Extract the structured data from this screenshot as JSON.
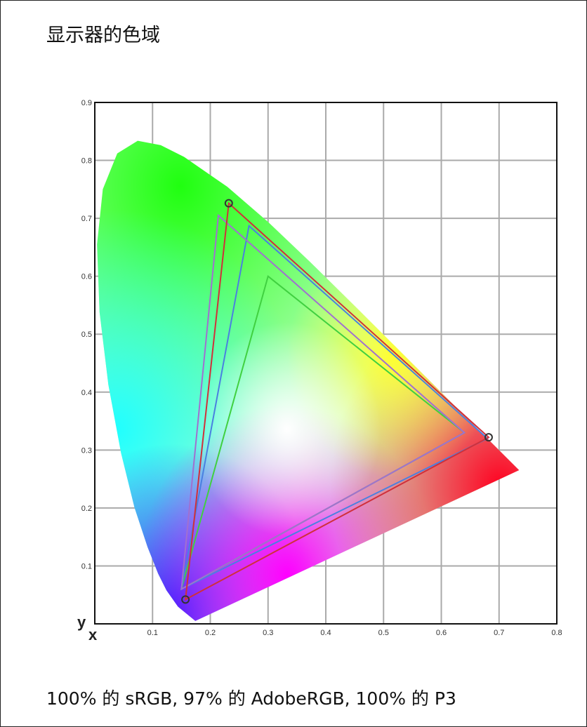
{
  "title": "显示器的色域",
  "caption": "100% 的 sRGB, 97% 的 AdobeRGB, 100% 的 P3",
  "chart_data": {
    "type": "line",
    "subtype": "CIE 1931 chromaticity diagram",
    "xlabel": "x",
    "ylabel": "y",
    "xlim": [
      0,
      0.8
    ],
    "ylim": [
      0,
      0.9
    ],
    "xticks": [
      "0.1",
      "0.2",
      "0.3",
      "0.4",
      "0.5",
      "0.6",
      "0.7",
      "0.8"
    ],
    "yticks": [
      "0.1",
      "0.2",
      "0.3",
      "0.4",
      "0.5",
      "0.6",
      "0.7",
      "0.8",
      "0.9"
    ],
    "grid": true,
    "spectral_locus": [
      [
        0.1741,
        0.005
      ],
      [
        0.144,
        0.0297
      ],
      [
        0.1241,
        0.0578
      ],
      [
        0.1096,
        0.0868
      ],
      [
        0.0913,
        0.1327
      ],
      [
        0.0687,
        0.2007
      ],
      [
        0.0454,
        0.295
      ],
      [
        0.0235,
        0.4127
      ],
      [
        0.0082,
        0.5384
      ],
      [
        0.0039,
        0.6548
      ],
      [
        0.0139,
        0.7502
      ],
      [
        0.0389,
        0.812
      ],
      [
        0.0743,
        0.8338
      ],
      [
        0.1142,
        0.8262
      ],
      [
        0.1547,
        0.8059
      ],
      [
        0.2296,
        0.7543
      ],
      [
        0.3016,
        0.6923
      ],
      [
        0.3731,
        0.6245
      ],
      [
        0.4441,
        0.5547
      ],
      [
        0.5125,
        0.4866
      ],
      [
        0.5752,
        0.4242
      ],
      [
        0.627,
        0.3725
      ],
      [
        0.6915,
        0.3083
      ],
      [
        0.7347,
        0.2653
      ]
    ],
    "series": [
      {
        "color": "#d0303a",
        "markers": true,
        "points": [
          [
            0.232,
            0.726
          ],
          [
            0.682,
            0.322
          ],
          [
            0.157,
            0.042
          ]
        ]
      },
      {
        "color": "#a070d0",
        "markers": false,
        "points": [
          [
            0.214,
            0.705
          ],
          [
            0.64,
            0.33
          ],
          [
            0.15,
            0.06
          ]
        ]
      },
      {
        "color": "#4a80e0",
        "markers": false,
        "points": [
          [
            0.267,
            0.687
          ],
          [
            0.68,
            0.32
          ],
          [
            0.15,
            0.06
          ]
        ]
      },
      {
        "color": "#40d040",
        "markers": false,
        "points": [
          [
            0.3,
            0.6
          ],
          [
            0.64,
            0.33
          ],
          [
            0.15,
            0.06
          ]
        ]
      }
    ]
  }
}
